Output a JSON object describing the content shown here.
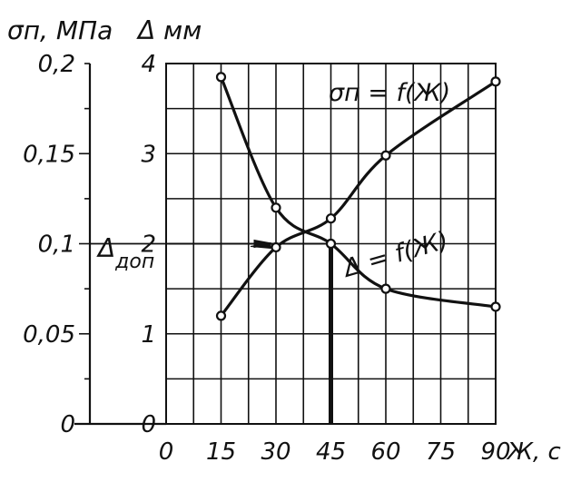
{
  "chart_data": {
    "type": "line",
    "x_axis": {
      "label": "Ж, с",
      "ticks": [
        0,
        15,
        30,
        45,
        60,
        75,
        90
      ],
      "range": [
        0,
        90
      ]
    },
    "y_axis_left": {
      "label": "σп, МПа",
      "ticks": [
        {
          "value": 0.2,
          "text": "0,2"
        },
        {
          "value": 0.15,
          "text": "0,15"
        },
        {
          "value": 0.1,
          "text": "0,1"
        },
        {
          "value": 0.05,
          "text": "0,05"
        },
        {
          "value": 0,
          "text": "0"
        }
      ],
      "range": [
        0,
        0.2
      ]
    },
    "y_axis_right": {
      "label": "Δ мм",
      "ticks": [
        0,
        1,
        2,
        3,
        4
      ],
      "range": [
        0,
        4
      ]
    },
    "series": [
      {
        "name": "σп = f(Ж)",
        "axis": "left",
        "x": [
          15,
          30,
          45,
          60,
          90
        ],
        "y": [
          0.06,
          0.098,
          0.114,
          0.149,
          0.19
        ]
      },
      {
        "name": "Δ = f(Ж)",
        "axis": "right",
        "x": [
          15,
          30,
          45,
          60,
          90
        ],
        "y": [
          3.85,
          2.4,
          2.0,
          1.5,
          1.3
        ]
      }
    ],
    "annotations": {
      "delta_label_main": "Δ",
      "delta_label_sub": "доп",
      "delta_allowed": 2.0,
      "sigma_level": 0.1,
      "x_marked": 45
    },
    "grid": true
  }
}
